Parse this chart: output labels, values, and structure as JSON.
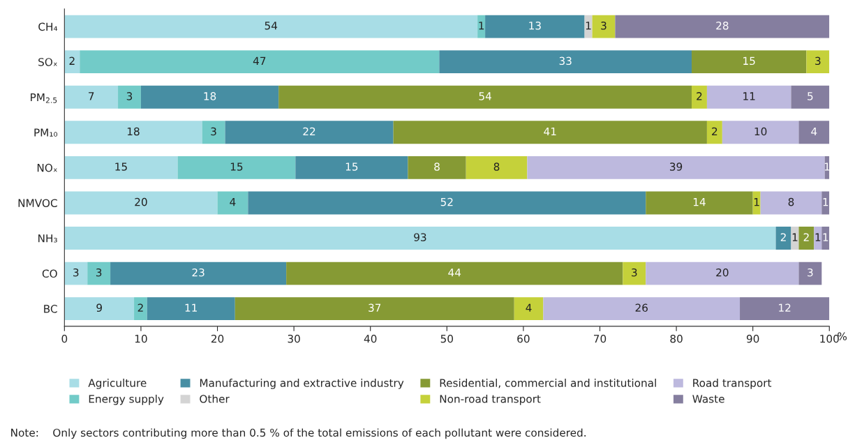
{
  "chart_data": {
    "type": "bar",
    "orientation": "horizontal",
    "stacked": true,
    "xlabel": "%",
    "categories": [
      "CH₄",
      "SOₓ",
      "PM$_{2.5}$",
      "PM₁₀",
      "NOₓ",
      "NMVOC",
      "NH₃",
      "CO",
      "BC"
    ],
    "xlim": [
      0,
      100
    ],
    "xticks": [
      0,
      10,
      20,
      30,
      40,
      50,
      60,
      70,
      80,
      90,
      100
    ],
    "grid": false,
    "legend": "bottom",
    "series": [
      {
        "name": "Agriculture",
        "color": "#a8dde6",
        "values": [
          54,
          2,
          7,
          18,
          14.8,
          20,
          93,
          3,
          9.1
        ],
        "value_labels": [
          "54",
          "2",
          "7",
          "18",
          "15",
          "20",
          "93",
          "3",
          "9"
        ]
      },
      {
        "name": "Energy supply",
        "color": "#72cbc8",
        "values": [
          1,
          47,
          3,
          3,
          15.4,
          4,
          null,
          3,
          1.7
        ],
        "value_labels": [
          "1",
          "47",
          "3",
          "3",
          "15",
          "4",
          null,
          "3",
          "2"
        ]
      },
      {
        "name": "Manufacturing and extractive industry",
        "color": "#478ea3",
        "values": [
          13,
          33,
          18,
          22,
          14.7,
          52,
          2,
          23,
          11.5
        ],
        "value_labels": [
          "13",
          "33",
          "18",
          "22",
          "15",
          "52",
          "2",
          "23",
          "11"
        ]
      },
      {
        "name": "Other",
        "color": "#d4d4d4",
        "values": [
          1,
          null,
          null,
          null,
          null,
          null,
          1,
          null,
          null
        ],
        "value_labels": [
          "1",
          null,
          null,
          null,
          null,
          null,
          "1",
          null,
          null
        ]
      },
      {
        "name": "Residential, commercial and institutional",
        "color": "#869a34",
        "values": [
          null,
          15,
          54,
          41,
          7.6,
          14,
          2,
          44,
          36.5
        ],
        "value_labels": [
          null,
          "15",
          "54",
          "41",
          "8",
          "14",
          "2",
          "44",
          "37"
        ]
      },
      {
        "name": "Non-road transport",
        "color": "#c5d13a",
        "values": [
          3,
          3,
          2,
          2,
          8,
          1,
          null,
          3,
          3.8
        ],
        "value_labels": [
          "3",
          "3",
          "2",
          "2",
          "8",
          "1",
          null,
          "3",
          "4"
        ]
      },
      {
        "name": "Road transport",
        "color": "#bdb9de",
        "values": [
          null,
          null,
          11,
          10,
          38.9,
          8,
          1,
          20,
          25.7
        ],
        "value_labels": [
          null,
          null,
          "11",
          "10",
          "39",
          "8",
          "1",
          "20",
          "26"
        ]
      },
      {
        "name": "Waste",
        "color": "#857e9f",
        "values": [
          28,
          null,
          5,
          4,
          0.6,
          1,
          1,
          3,
          11.7
        ],
        "value_labels": [
          "28",
          null,
          "5",
          "4",
          "1",
          "1",
          "1",
          "3",
          "12"
        ]
      }
    ],
    "annotations": [
      "Note:    Only sectors contributing more than 0.5 % of the total emissions of each pollutant were considered."
    ]
  }
}
